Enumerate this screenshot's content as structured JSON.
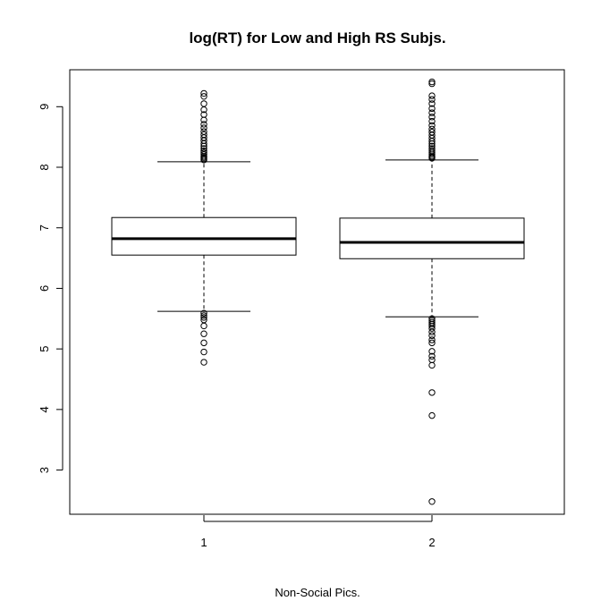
{
  "chart_data": {
    "type": "box",
    "title": "log(RT) for Low and High RS Subjs.",
    "xlabel": "Non-Social Pics.",
    "ylabel": "",
    "categories": [
      "1",
      "2"
    ],
    "yticks": [
      3,
      4,
      5,
      6,
      7,
      8,
      9
    ],
    "ylim": [
      2.27,
      9.61
    ],
    "grid": false,
    "boxes": [
      {
        "category": "1",
        "whisker_low": 5.62,
        "q1": 6.55,
        "median": 6.82,
        "q3": 7.17,
        "whisker_high": 8.09,
        "outliers": [
          8.12,
          8.14,
          8.16,
          8.18,
          8.21,
          8.24,
          8.27,
          8.31,
          8.35,
          8.39,
          8.44,
          8.49,
          8.54,
          8.59,
          8.65,
          8.71,
          8.78,
          8.87,
          8.95,
          9.05,
          9.17,
          9.22,
          5.59,
          5.55,
          5.52,
          5.48,
          5.38,
          5.25,
          5.1,
          4.95,
          4.78
        ]
      },
      {
        "category": "2",
        "whisker_low": 5.53,
        "q1": 6.49,
        "median": 6.76,
        "q3": 7.16,
        "whisker_high": 8.12,
        "outliers": [
          8.15,
          8.17,
          8.19,
          8.22,
          8.25,
          8.28,
          8.31,
          8.35,
          8.39,
          8.43,
          8.48,
          8.53,
          8.58,
          8.63,
          8.69,
          8.76,
          8.83,
          8.9,
          8.97,
          9.05,
          9.12,
          9.18,
          9.38,
          9.41,
          5.5,
          5.47,
          5.44,
          5.41,
          5.38,
          5.34,
          5.28,
          5.22,
          5.15,
          5.1,
          4.96,
          4.88,
          4.82,
          4.73,
          4.28,
          3.9,
          2.48
        ]
      }
    ]
  }
}
